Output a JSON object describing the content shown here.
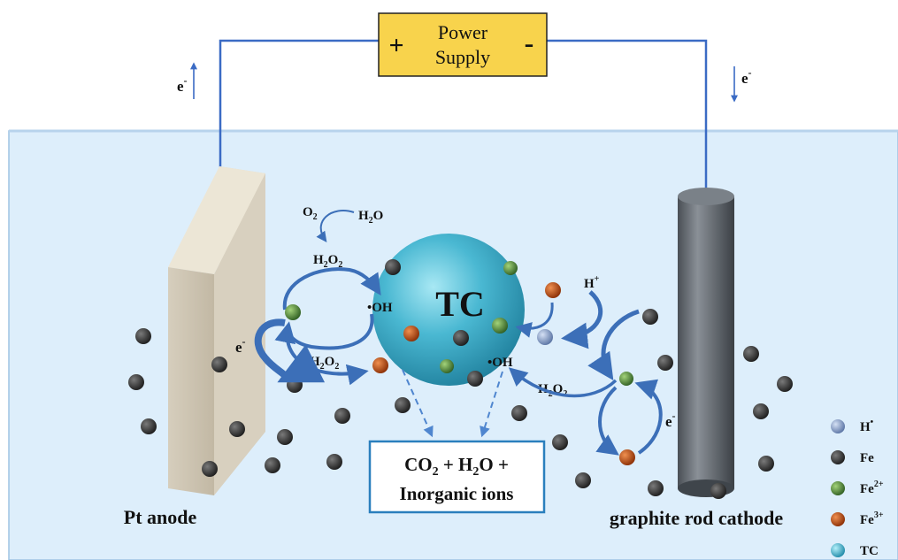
{
  "power_supply": {
    "plus": "+",
    "label_line1": "Power",
    "label_line2": "Supply",
    "minus": "-"
  },
  "electron_left": "e-",
  "electron_right": "e-",
  "anode_label": "Pt anode",
  "cathode_label": "graphite rod cathode",
  "sphere_label": "TC",
  "o2": "O2",
  "h2o": "H2O",
  "h2o2_top": "H2O2",
  "h2o2_bottom": "H2O2",
  "h2o2_right": "H2O2",
  "oh_left": "•OH",
  "oh_right": "•OH",
  "h_plus": "H+",
  "e_anode_loop": "e-",
  "e_cathode_loop": "e-",
  "products_line1": "CO2 + H2O +",
  "products_line2": "Inorganic ions",
  "legend": [
    {
      "label": "H•",
      "color": "#8fa6cc"
    },
    {
      "label": "Fe",
      "color": "#3a3a3a"
    },
    {
      "label": "Fe2+",
      "color": "#4e8a3a"
    },
    {
      "label": "Fe3+",
      "color": "#b8480e"
    },
    {
      "label": "TC",
      "color": "#4ab8d2"
    }
  ],
  "colors": {
    "wire": "#3b6bc4",
    "arrow": "#3c6fb8",
    "water": "#ddeefb",
    "power_fill": "#f8d34c",
    "sphere": "#45b7cf",
    "box_border": "#2a7fbd"
  }
}
